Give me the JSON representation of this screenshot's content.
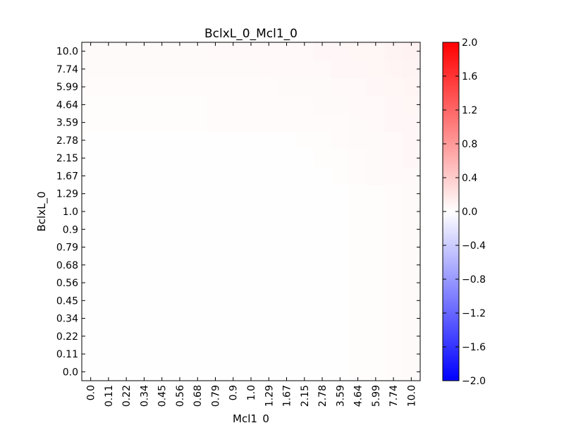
{
  "chart_data": {
    "type": "heatmap",
    "title": "BclxL_0_Mcl1_0",
    "xlabel": "Mcl1_0",
    "ylabel": "BclxL_0",
    "x_categories": [
      "0.0",
      "0.11",
      "0.22",
      "0.34",
      "0.45",
      "0.56",
      "0.68",
      "0.79",
      "0.9",
      "1.0",
      "1.29",
      "1.67",
      "2.15",
      "2.78",
      "3.59",
      "4.64",
      "5.99",
      "7.74",
      "10.0"
    ],
    "y_categories": [
      "0.0",
      "0.11",
      "0.22",
      "0.34",
      "0.45",
      "0.56",
      "0.68",
      "0.79",
      "0.9",
      "1.0",
      "1.29",
      "1.67",
      "2.15",
      "2.78",
      "3.59",
      "4.64",
      "5.99",
      "7.74",
      "10.0"
    ],
    "values": [
      [
        0.01,
        0.01,
        0.01,
        0.01,
        0.01,
        0.01,
        0.01,
        0.01,
        0.01,
        0.01,
        0.01,
        0.01,
        0.01,
        0.01,
        0.01,
        0.02,
        0.02,
        0.03,
        0.04
      ],
      [
        0.01,
        0.01,
        0.01,
        0.01,
        0.01,
        0.01,
        0.01,
        0.01,
        0.01,
        0.01,
        0.01,
        0.01,
        0.01,
        0.01,
        0.01,
        0.02,
        0.02,
        0.03,
        0.04
      ],
      [
        0.01,
        0.01,
        0.01,
        0.01,
        0.01,
        0.01,
        0.01,
        0.01,
        0.01,
        0.01,
        0.01,
        0.01,
        0.01,
        0.01,
        0.01,
        0.02,
        0.02,
        0.03,
        0.04
      ],
      [
        0.01,
        0.01,
        0.01,
        0.01,
        0.01,
        0.01,
        0.01,
        0.01,
        0.01,
        0.01,
        0.01,
        0.01,
        0.01,
        0.01,
        0.01,
        0.02,
        0.02,
        0.03,
        0.04
      ],
      [
        0.01,
        0.01,
        0.01,
        0.01,
        0.01,
        0.01,
        0.01,
        0.01,
        0.01,
        0.01,
        0.01,
        0.01,
        0.01,
        0.01,
        0.01,
        0.02,
        0.02,
        0.03,
        0.04
      ],
      [
        0.01,
        0.01,
        0.01,
        0.01,
        0.01,
        0.01,
        0.01,
        0.01,
        0.01,
        0.01,
        0.01,
        0.01,
        0.01,
        0.01,
        0.01,
        0.02,
        0.02,
        0.03,
        0.04
      ],
      [
        0.01,
        0.01,
        0.01,
        0.01,
        0.01,
        0.01,
        0.01,
        0.01,
        0.01,
        0.01,
        0.01,
        0.01,
        0.01,
        0.01,
        0.01,
        0.02,
        0.02,
        0.03,
        0.04
      ],
      [
        0.01,
        0.01,
        0.01,
        0.01,
        0.01,
        0.01,
        0.01,
        0.01,
        0.01,
        0.01,
        0.01,
        0.01,
        0.01,
        0.01,
        0.01,
        0.02,
        0.02,
        0.03,
        0.04
      ],
      [
        0.01,
        0.01,
        0.01,
        0.01,
        0.01,
        0.01,
        0.01,
        0.01,
        0.01,
        0.01,
        0.01,
        0.01,
        0.01,
        0.01,
        0.01,
        0.02,
        0.02,
        0.03,
        0.04
      ],
      [
        0.01,
        0.01,
        0.01,
        0.01,
        0.01,
        0.01,
        0.01,
        0.01,
        0.01,
        0.01,
        0.01,
        0.01,
        0.01,
        0.01,
        0.01,
        0.02,
        0.02,
        0.03,
        0.04
      ],
      [
        0.01,
        0.01,
        0.01,
        0.01,
        0.01,
        0.01,
        0.01,
        0.01,
        0.01,
        0.01,
        0.01,
        0.01,
        0.01,
        0.01,
        0.01,
        0.02,
        0.02,
        0.03,
        0.04
      ],
      [
        0.01,
        0.01,
        0.01,
        0.01,
        0.01,
        0.01,
        0.01,
        0.01,
        0.01,
        0.01,
        0.01,
        0.01,
        0.01,
        0.01,
        0.02,
        0.03,
        0.04,
        0.05,
        0.05
      ],
      [
        0.01,
        0.01,
        0.01,
        0.01,
        0.01,
        0.01,
        0.01,
        0.01,
        0.01,
        0.01,
        0.01,
        0.01,
        0.01,
        0.02,
        0.02,
        0.03,
        0.04,
        0.05,
        0.06
      ],
      [
        0.01,
        0.01,
        0.01,
        0.01,
        0.01,
        0.01,
        0.01,
        0.01,
        0.01,
        0.01,
        0.01,
        0.01,
        0.02,
        0.02,
        0.03,
        0.04,
        0.04,
        0.05,
        0.06
      ],
      [
        0.02,
        0.02,
        0.02,
        0.02,
        0.02,
        0.02,
        0.02,
        0.03,
        0.03,
        0.03,
        0.03,
        0.03,
        0.03,
        0.03,
        0.03,
        0.04,
        0.05,
        0.06,
        0.06
      ],
      [
        0.02,
        0.02,
        0.02,
        0.02,
        0.02,
        0.02,
        0.02,
        0.03,
        0.03,
        0.03,
        0.03,
        0.03,
        0.03,
        0.04,
        0.04,
        0.05,
        0.05,
        0.06,
        0.07
      ],
      [
        0.03,
        0.03,
        0.03,
        0.03,
        0.03,
        0.03,
        0.03,
        0.03,
        0.03,
        0.03,
        0.03,
        0.04,
        0.04,
        0.04,
        0.05,
        0.05,
        0.06,
        0.07,
        0.08
      ],
      [
        0.04,
        0.04,
        0.04,
        0.04,
        0.04,
        0.04,
        0.04,
        0.04,
        0.04,
        0.04,
        0.05,
        0.05,
        0.05,
        0.05,
        0.06,
        0.06,
        0.07,
        0.08,
        0.09
      ],
      [
        0.04,
        0.04,
        0.04,
        0.04,
        0.04,
        0.04,
        0.04,
        0.05,
        0.05,
        0.05,
        0.05,
        0.05,
        0.05,
        0.06,
        0.06,
        0.07,
        0.07,
        0.09,
        0.1
      ]
    ],
    "colorbar": {
      "min": -2.0,
      "max": 2.0,
      "ticks": [
        "2.0",
        "1.6",
        "1.2",
        "0.8",
        "0.4",
        "0.0",
        "−0.4",
        "−0.8",
        "−1.2",
        "−1.6",
        "−2.0"
      ],
      "colors": {
        "low": "#0000ff",
        "mid": "#ffffff",
        "high": "#ff0000"
      }
    },
    "grid": false,
    "legend": "colorbar-right"
  }
}
